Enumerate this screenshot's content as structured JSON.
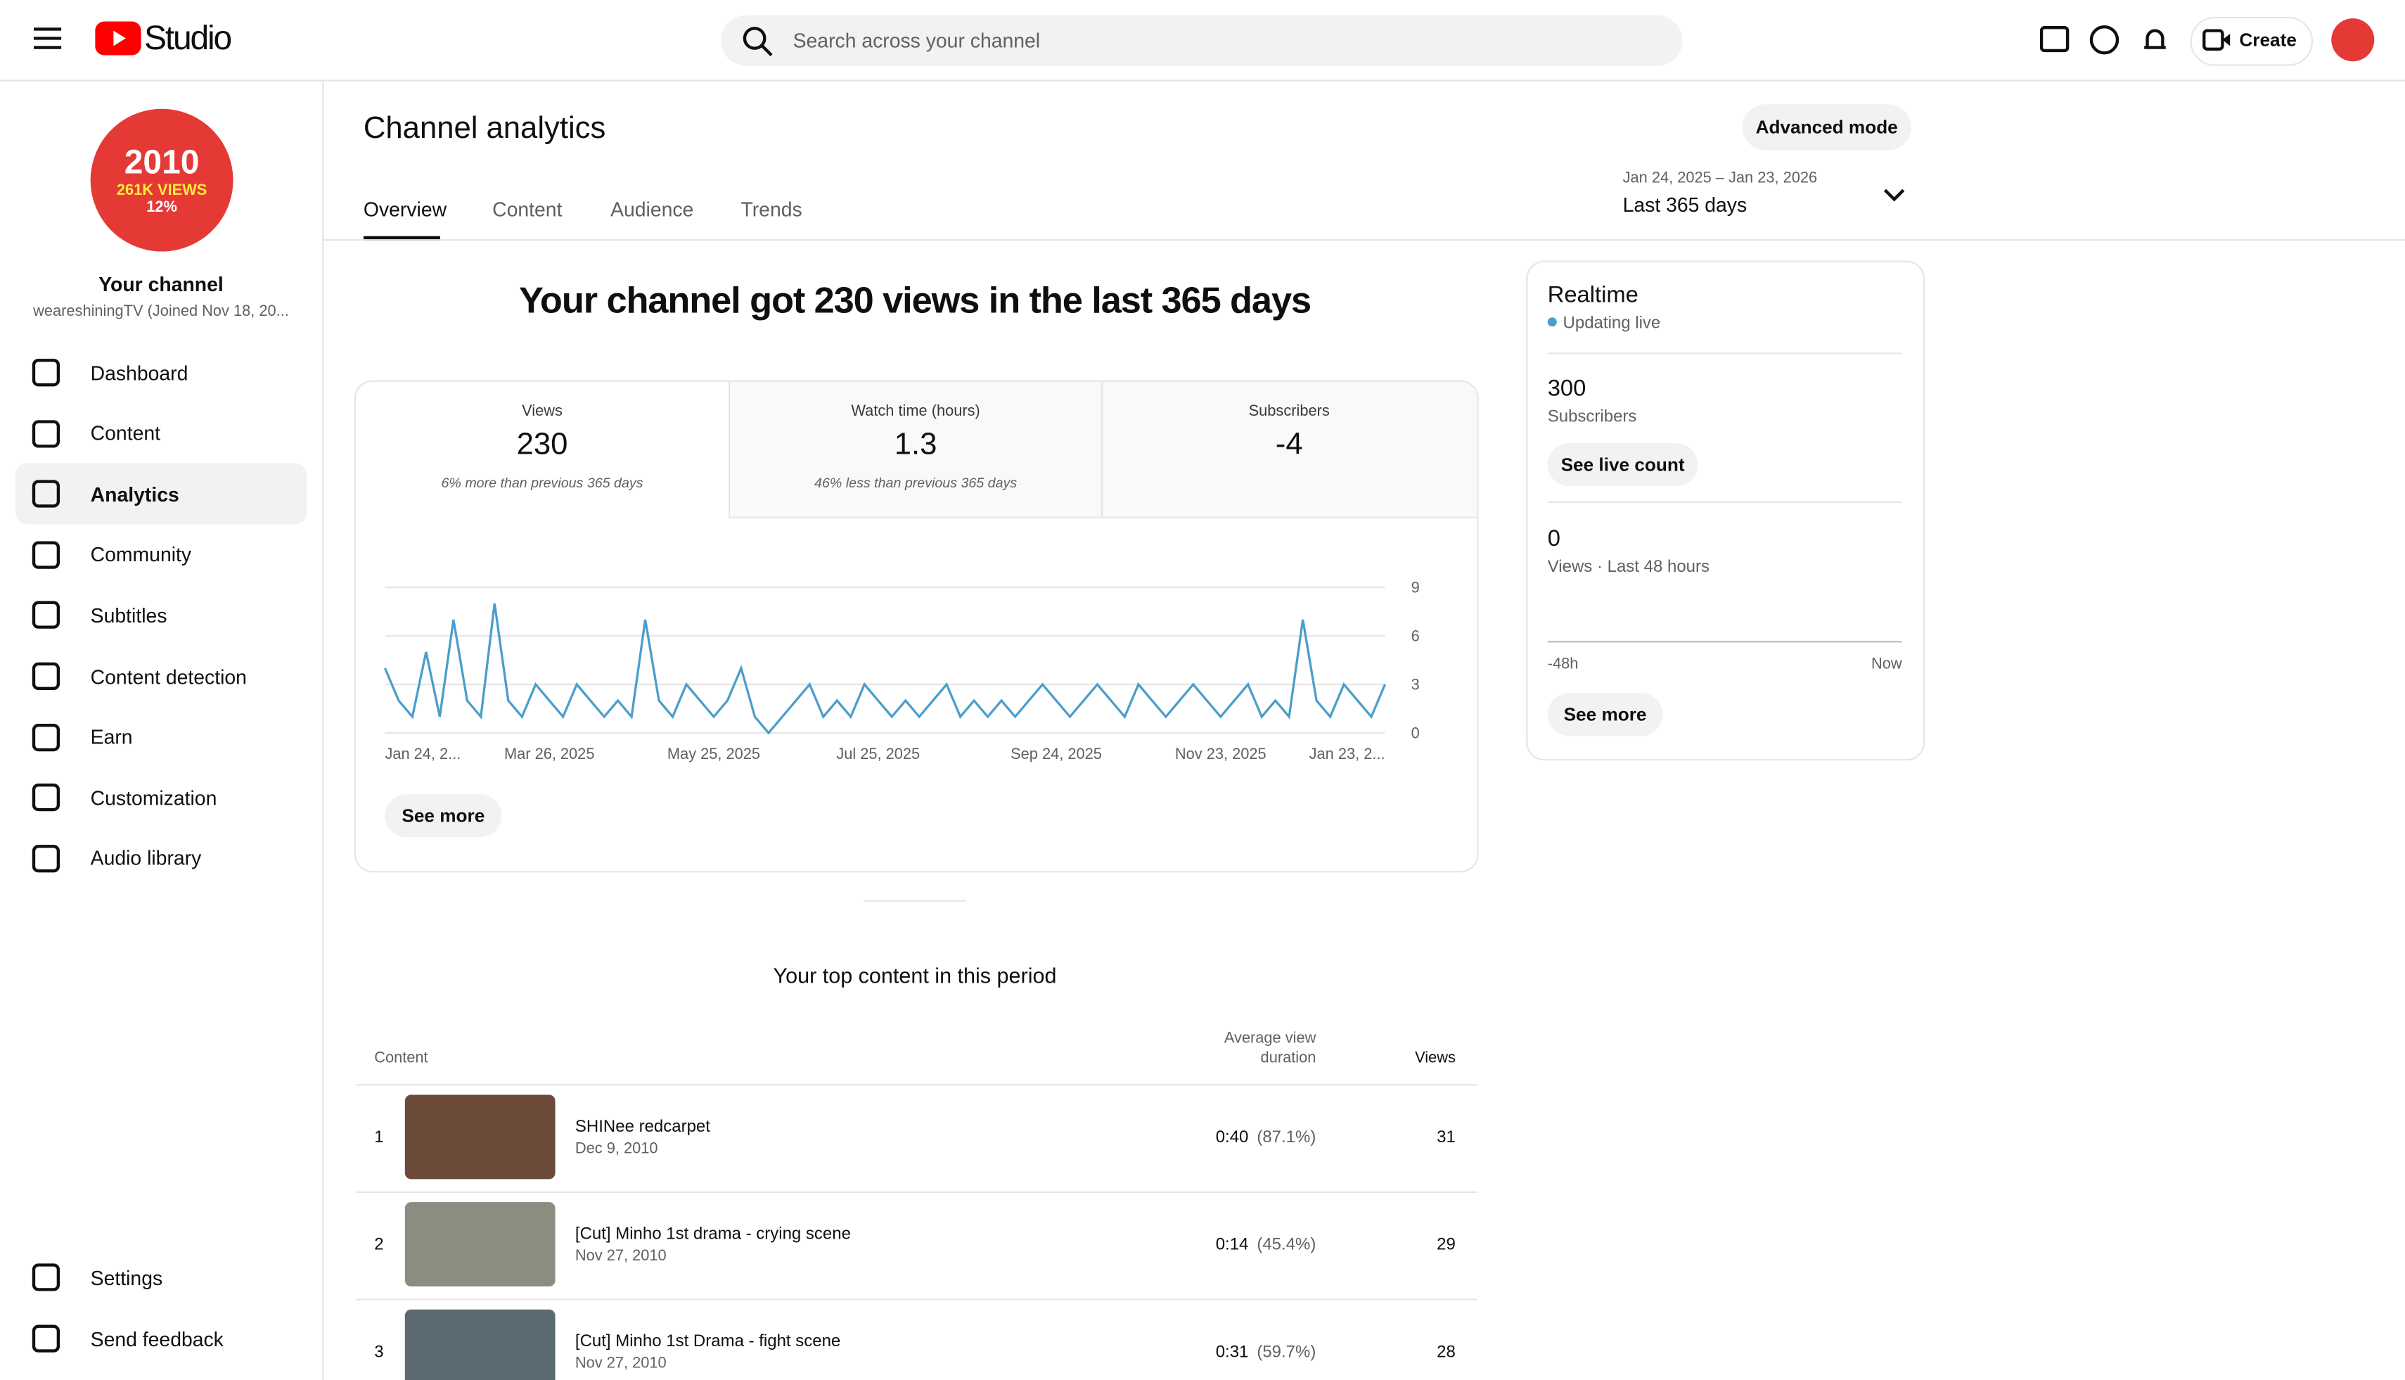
{
  "header": {
    "logo": "Studio",
    "search_placeholder": "Search across your channel",
    "create": "Create"
  },
  "sidebar": {
    "avatar_lines": [
      "2010",
      "261K VIEWS",
      "12%"
    ],
    "channel_title": "Your channel",
    "channel_sub": "weareshiningTV (Joined Nov 18, 20...",
    "items": [
      "Dashboard",
      "Content",
      "Analytics",
      "Community",
      "Subtitles",
      "Content detection",
      "Earn",
      "Customization",
      "Audio library"
    ],
    "active": "Analytics",
    "bottom_items": [
      "Settings",
      "Send feedback"
    ]
  },
  "page": {
    "title": "Channel analytics",
    "advanced_mode": "Advanced mode",
    "tabs": [
      "Overview",
      "Content",
      "Audience",
      "Trends"
    ],
    "date_range": "Jan 24, 2025 – Jan 23, 2026",
    "date_label": "Last 365 days",
    "headline": "Your channel got 230 views in the last 365 days",
    "metrics": [
      {
        "label": "Views",
        "value": "230",
        "note": "6% more than previous 365 days"
      },
      {
        "label": "Watch time (hours)",
        "value": "1.3",
        "note": "46% less than previous 365 days"
      },
      {
        "label": "Subscribers",
        "value": "-4",
        "note": ""
      }
    ],
    "see_more": "See more"
  },
  "chart_data": {
    "type": "line",
    "color": "#4a9ecb",
    "categories": [
      "Jan 24, 2...",
      null,
      null,
      null,
      null,
      null,
      null,
      null,
      null,
      null,
      null,
      null,
      "Mar 26, 2025",
      null,
      null,
      null,
      null,
      null,
      null,
      null,
      null,
      null,
      null,
      null,
      "May 25, 2025",
      null,
      null,
      null,
      null,
      null,
      null,
      null,
      null,
      null,
      null,
      null,
      "Jul 25, 2025",
      null,
      null,
      null,
      null,
      null,
      null,
      null,
      null,
      null,
      null,
      null,
      null,
      "Sep 24, 2025",
      null,
      null,
      null,
      null,
      null,
      null,
      null,
      null,
      null,
      null,
      null,
      "Nov 23, 2025",
      null,
      null,
      null,
      null,
      null,
      null,
      null,
      null,
      null,
      null,
      null,
      "Jan 23, 2..."
    ],
    "values": [
      4,
      2,
      1,
      5,
      1,
      7,
      2,
      1,
      8,
      2,
      1,
      3,
      2,
      1,
      3,
      2,
      1,
      2,
      1,
      7,
      2,
      1,
      3,
      2,
      1,
      2,
      4,
      1,
      0,
      1,
      2,
      3,
      1,
      2,
      1,
      3,
      2,
      1,
      2,
      1,
      2,
      3,
      1,
      2,
      1,
      2,
      1,
      2,
      3,
      2,
      1,
      2,
      3,
      2,
      1,
      3,
      2,
      1,
      2,
      3,
      2,
      1,
      2,
      3,
      1,
      2,
      1,
      7,
      2,
      1,
      3,
      2,
      1,
      3
    ],
    "ylim": [
      0,
      9
    ],
    "yticks": [
      0,
      3,
      6,
      9
    ],
    "grid": true
  },
  "realtime": {
    "title": "Realtime",
    "status": "Updating live",
    "subs_value": "300",
    "subs_label": "Subscribers",
    "live_count": "See live count",
    "views_value": "0",
    "views_label": "Views · Last 48 hours",
    "axis_start": "-48h",
    "axis_end": "Now",
    "see_more": "See more"
  },
  "top_content": {
    "title": "Your top content in this period",
    "col_content": "Content",
    "col_avd": "Average view duration",
    "col_views": "Views",
    "rows": [
      [
        "1",
        "SHINee redcarpet",
        "Dec 9, 2010",
        "0:40",
        "(87.1%)",
        "31"
      ],
      [
        "2",
        "[Cut] Minho 1st drama - crying scene",
        "Nov 27, 2010",
        "0:14",
        "(45.4%)",
        "29"
      ],
      [
        "3",
        "[Cut] Minho 1st Drama - fight scene",
        "Nov 27, 2010",
        "0:31",
        "(59.7%)",
        "28"
      ]
    ]
  }
}
